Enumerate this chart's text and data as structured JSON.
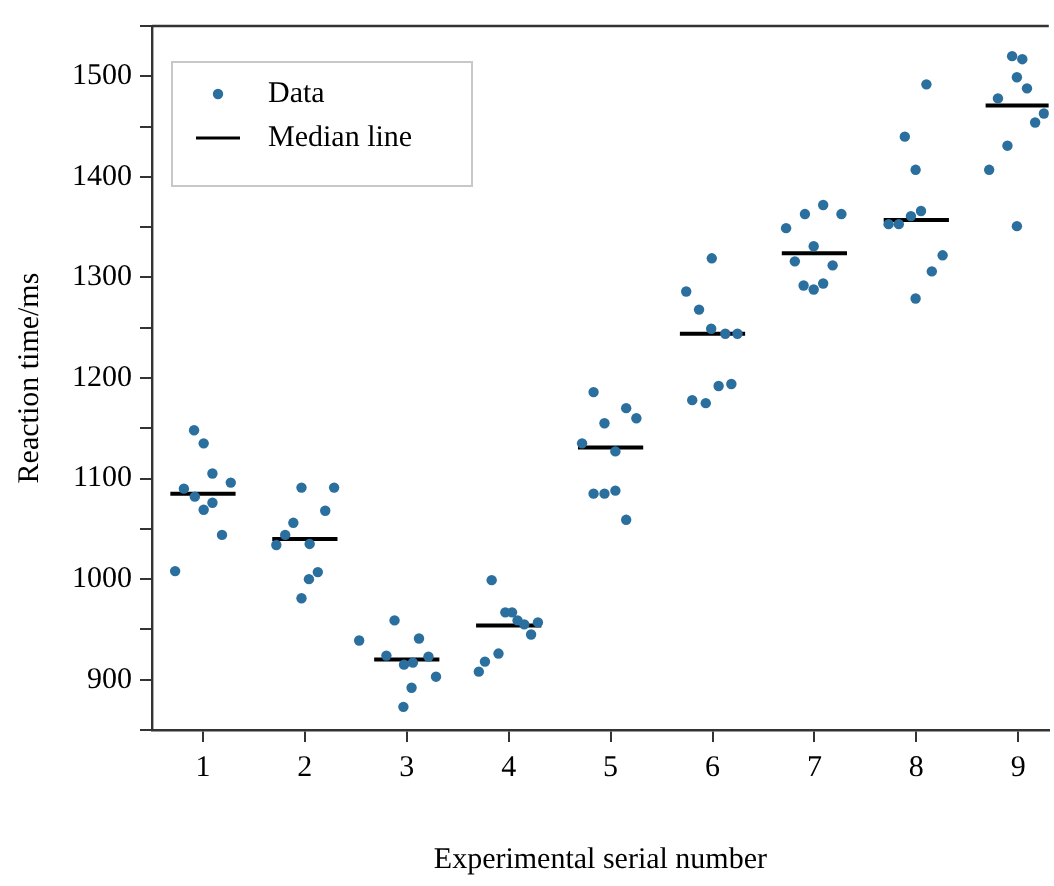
{
  "chart_data": {
    "type": "scatter",
    "xlabel": "Experimental serial number",
    "ylabel": "Reaction time/ms",
    "xlim": [
      0.5,
      9.3
    ],
    "xticks": [
      1,
      2,
      3,
      4,
      5,
      6,
      7,
      8,
      9
    ],
    "ylim": [
      850,
      1550
    ],
    "yticks": [
      {
        "value": 850,
        "label": null
      },
      900,
      {
        "value": 950,
        "label": null
      },
      1000,
      {
        "value": 1050,
        "label": null
      },
      1100,
      {
        "value": 1150,
        "label": null
      },
      1200,
      {
        "value": 1250,
        "label": null
      },
      1300,
      {
        "value": 1350,
        "label": null
      },
      1400,
      {
        "value": 1450,
        "label": null
      },
      1500,
      {
        "value": 1550,
        "label": null
      }
    ],
    "grid": false,
    "legend": "top left",
    "marker": "circle",
    "series": [
      {
        "name": "Data",
        "type": "scatter",
        "color": "#2b6f9e",
        "x": [
          0.913,
          1.007,
          1.093,
          0.813,
          0.92,
          1.273,
          1.093,
          1.007,
          1.187,
          0.727,
          1.967,
          2.287,
          2.2,
          1.887,
          1.807,
          1.72,
          2.047,
          2.127,
          2.04,
          1.967,
          2.88,
          2.533,
          3.12,
          2.8,
          2.973,
          3.06,
          3.213,
          3.047,
          3.287,
          2.967,
          3.833,
          3.967,
          4.033,
          4.087,
          4.153,
          4.287,
          4.22,
          3.9,
          3.767,
          3.707,
          4.833,
          5.153,
          5.253,
          4.94,
          4.72,
          5.047,
          4.833,
          4.94,
          5.047,
          5.153,
          5.993,
          5.742,
          5.868,
          5.987,
          6.126,
          6.245,
          5.801,
          5.934,
          6.06,
          6.185,
          6.722,
          6.907,
          7.086,
          7.265,
          6.993,
          6.808,
          7.179,
          6.894,
          6.993,
          7.086,
          8.099,
          7.887,
          7.993,
          7.728,
          7.828,
          7.947,
          8.046,
          8.258,
          8.152,
          7.993,
          8.94,
          9.04,
          8.987,
          9.086,
          8.801,
          9.252,
          9.166,
          8.894,
          8.715,
          8.987
        ],
        "values": [
          1148,
          1135,
          1105,
          1090,
          1082,
          1096,
          1076,
          1069,
          1044,
          1008,
          1091,
          1091,
          1068,
          1056,
          1044,
          1034,
          1035,
          1007,
          1000,
          981,
          959,
          939,
          941,
          924,
          915,
          917,
          923,
          892,
          903,
          873,
          999,
          967,
          967,
          959,
          955,
          957,
          945,
          926,
          918,
          908,
          1186,
          1170,
          1160,
          1155,
          1135,
          1127,
          1085,
          1085,
          1088,
          1059,
          1319,
          1286,
          1268,
          1249,
          1244,
          1244,
          1178,
          1175,
          1192,
          1194,
          1349,
          1363,
          1372,
          1363,
          1331,
          1316,
          1312,
          1292,
          1288,
          1294,
          1492,
          1440,
          1407,
          1353,
          1353,
          1361,
          1366,
          1322,
          1306,
          1279,
          1520,
          1517,
          1499,
          1488,
          1478,
          1463,
          1454,
          1431,
          1407,
          1351
        ]
      },
      {
        "name": "Median line",
        "type": "line",
        "color": "#000000",
        "marker": "none",
        "x": [
          0.68,
          1.32,
          1.5,
          1.68,
          2.32,
          2.5,
          2.68,
          3.32,
          3.5,
          3.68,
          4.32,
          4.5,
          4.68,
          5.32,
          5.5,
          5.68,
          6.32,
          6.5,
          6.68,
          7.32,
          7.5,
          7.68,
          8.32,
          8.5,
          8.68,
          9.3
        ],
        "values": [
          1085,
          1085,
          null,
          1040,
          1040,
          null,
          920,
          920,
          null,
          954,
          954,
          null,
          1131,
          1131,
          null,
          1244,
          1244,
          null,
          1324,
          1324,
          null,
          1357,
          1357,
          null,
          1471,
          1471
        ]
      }
    ]
  }
}
